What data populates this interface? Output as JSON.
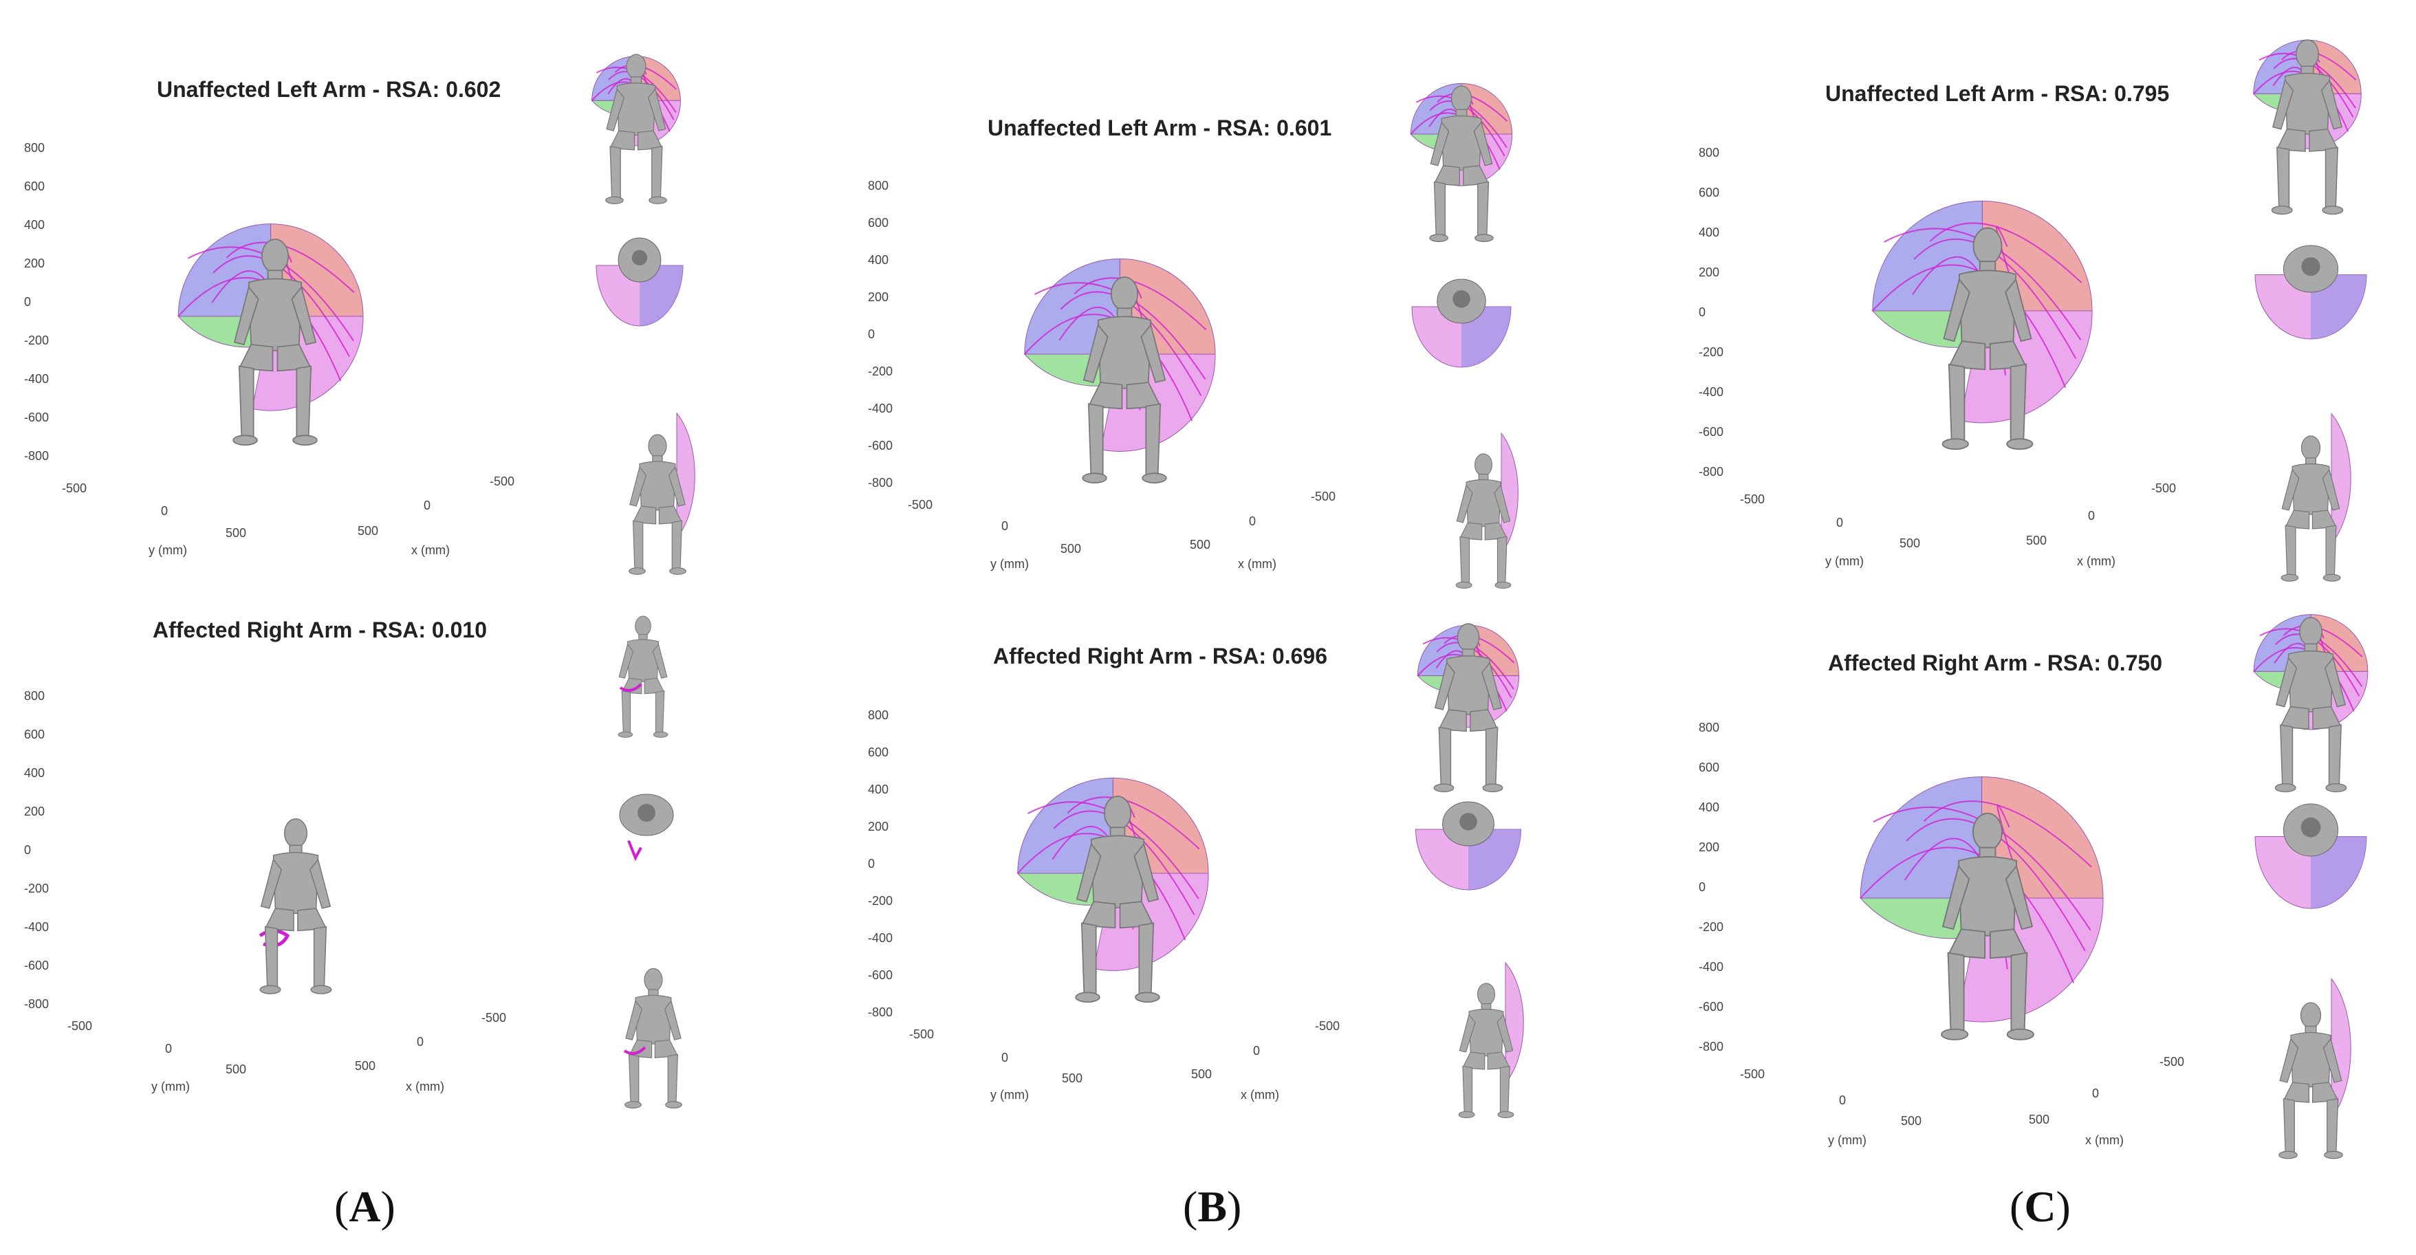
{
  "panels": [
    {
      "label_open": "(",
      "label_letter": "A",
      "label_close": ")",
      "plots": [
        {
          "title": "Unaffected Left Arm - RSA: 0.602"
        },
        {
          "title": "Affected Right Arm - RSA: 0.010"
        }
      ]
    },
    {
      "label_open": "(",
      "label_letter": "B",
      "label_close": ")",
      "plots": [
        {
          "title": "Unaffected Left Arm - RSA: 0.601"
        },
        {
          "title": "Affected Right Arm - RSA: 0.696"
        }
      ]
    },
    {
      "label_open": "(",
      "label_letter": "C",
      "label_close": ")",
      "plots": [
        {
          "title": "Unaffected Left Arm - RSA: 0.795"
        },
        {
          "title": "Affected Right Arm - RSA: 0.750"
        }
      ]
    }
  ],
  "axes": {
    "z_ticks": [
      "800",
      "600",
      "400",
      "200",
      "0",
      "-200",
      "-400",
      "-600",
      "-800"
    ],
    "y_ticks": [
      "-500",
      "0",
      "500"
    ],
    "x_ticks": [
      "500",
      "0",
      "-500"
    ],
    "y_label": "y (mm)",
    "x_label": "x (mm)"
  },
  "colors": {
    "region_red": "#e88a8a",
    "region_blue": "#8f8fe8",
    "region_green": "#7fd97f",
    "region_magenta": "#e58be5",
    "trajectory": "#d21fd2",
    "body": "#a9a9a9"
  },
  "icons": [
    "seated-mannequin-icon",
    "workspace-sphere-icon"
  ]
}
